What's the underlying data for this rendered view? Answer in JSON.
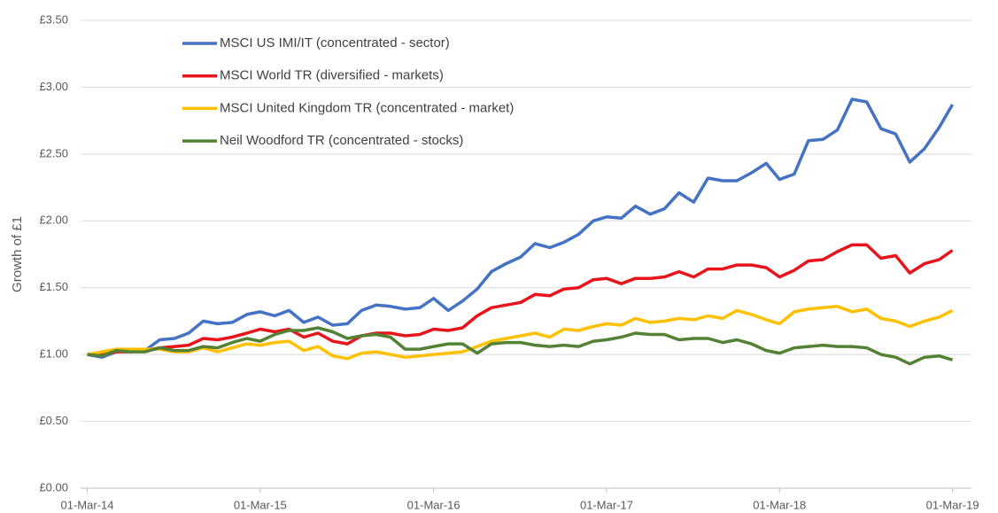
{
  "chart_data": {
    "type": "line",
    "y_label": "Growth of £1",
    "x": [
      "2014-03-01",
      "2014-04-01",
      "2014-05-01",
      "2014-06-01",
      "2014-07-01",
      "2014-08-01",
      "2014-09-01",
      "2014-10-01",
      "2014-11-01",
      "2014-12-01",
      "2015-01-01",
      "2015-02-01",
      "2015-03-01",
      "2015-04-01",
      "2015-05-01",
      "2015-06-01",
      "2015-07-01",
      "2015-08-01",
      "2015-09-01",
      "2015-10-01",
      "2015-11-01",
      "2015-12-01",
      "2016-01-01",
      "2016-02-01",
      "2016-03-01",
      "2016-04-01",
      "2016-05-01",
      "2016-06-01",
      "2016-07-01",
      "2016-08-01",
      "2016-09-01",
      "2016-10-01",
      "2016-11-01",
      "2016-12-01",
      "2017-01-01",
      "2017-02-01",
      "2017-03-01",
      "2017-04-01",
      "2017-05-01",
      "2017-06-01",
      "2017-07-01",
      "2017-08-01",
      "2017-09-01",
      "2017-10-01",
      "2017-11-01",
      "2017-12-01",
      "2018-01-01",
      "2018-02-01",
      "2018-03-01",
      "2018-04-01",
      "2018-05-01",
      "2018-06-01",
      "2018-07-01",
      "2018-08-01",
      "2018-09-01",
      "2018-10-01",
      "2018-11-01",
      "2018-12-01",
      "2019-01-01",
      "2019-02-01",
      "2019-03-01"
    ],
    "series": [
      {
        "name": "MSCI US IMI/IT (concentrated - sector)",
        "color": "#4472c4",
        "values": [
          1.0,
          0.98,
          1.02,
          1.03,
          1.03,
          1.11,
          1.12,
          1.16,
          1.25,
          1.23,
          1.24,
          1.3,
          1.32,
          1.29,
          1.33,
          1.24,
          1.28,
          1.22,
          1.23,
          1.33,
          1.37,
          1.36,
          1.34,
          1.35,
          1.42,
          1.33,
          1.4,
          1.49,
          1.62,
          1.68,
          1.73,
          1.83,
          1.8,
          1.84,
          1.9,
          2.0,
          2.03,
          2.02,
          2.11,
          2.05,
          2.09,
          2.21,
          2.14,
          2.32,
          2.3,
          2.3,
          2.36,
          2.43,
          2.31,
          2.35,
          2.6,
          2.61,
          2.68,
          2.91,
          2.89,
          2.69,
          2.65,
          2.44,
          2.54,
          2.7,
          2.87
        ]
      },
      {
        "name": "MSCI World TR (diversified - markets)",
        "color": "#e8141b",
        "values": [
          1.0,
          1.0,
          1.02,
          1.02,
          1.03,
          1.05,
          1.06,
          1.07,
          1.12,
          1.11,
          1.13,
          1.16,
          1.19,
          1.17,
          1.19,
          1.13,
          1.16,
          1.1,
          1.08,
          1.14,
          1.16,
          1.16,
          1.14,
          1.15,
          1.19,
          1.18,
          1.2,
          1.29,
          1.35,
          1.37,
          1.39,
          1.45,
          1.44,
          1.49,
          1.5,
          1.56,
          1.57,
          1.53,
          1.57,
          1.57,
          1.58,
          1.62,
          1.58,
          1.64,
          1.64,
          1.67,
          1.67,
          1.65,
          1.58,
          1.63,
          1.7,
          1.71,
          1.77,
          1.82,
          1.82,
          1.72,
          1.74,
          1.61,
          1.68,
          1.71,
          1.78
        ]
      },
      {
        "name": "MSCI United Kingdom TR (concentrated - market)",
        "color": "#ffc000",
        "values": [
          1.0,
          1.02,
          1.04,
          1.04,
          1.04,
          1.04,
          1.02,
          1.02,
          1.05,
          1.02,
          1.05,
          1.08,
          1.07,
          1.09,
          1.1,
          1.03,
          1.06,
          0.99,
          0.97,
          1.01,
          1.02,
          1.0,
          0.98,
          0.99,
          1.0,
          1.01,
          1.02,
          1.06,
          1.1,
          1.12,
          1.14,
          1.16,
          1.13,
          1.19,
          1.18,
          1.21,
          1.23,
          1.22,
          1.27,
          1.24,
          1.25,
          1.27,
          1.26,
          1.29,
          1.27,
          1.33,
          1.3,
          1.26,
          1.23,
          1.32,
          1.34,
          1.35,
          1.36,
          1.32,
          1.34,
          1.27,
          1.25,
          1.21,
          1.25,
          1.28,
          1.33
        ]
      },
      {
        "name": "Neil Woodford TR (concentrated - stocks)",
        "color": "#548235",
        "values": [
          1.0,
          0.99,
          1.03,
          1.02,
          1.02,
          1.05,
          1.03,
          1.03,
          1.06,
          1.05,
          1.09,
          1.12,
          1.1,
          1.15,
          1.18,
          1.18,
          1.2,
          1.17,
          1.12,
          1.14,
          1.15,
          1.13,
          1.04,
          1.04,
          1.06,
          1.08,
          1.08,
          1.01,
          1.08,
          1.09,
          1.09,
          1.07,
          1.06,
          1.07,
          1.06,
          1.1,
          1.11,
          1.13,
          1.16,
          1.15,
          1.15,
          1.11,
          1.12,
          1.12,
          1.09,
          1.11,
          1.08,
          1.03,
          1.01,
          1.05,
          1.06,
          1.07,
          1.06,
          1.06,
          1.05,
          1.0,
          0.98,
          0.93,
          0.98,
          0.99,
          0.96
        ]
      }
    ],
    "xlim": [
      "2014-02-15",
      "2019-04-10"
    ],
    "xticks": [
      {
        "value": "2014-03-01",
        "label": "01-Mar-14"
      },
      {
        "value": "2015-03-01",
        "label": "01-Mar-15"
      },
      {
        "value": "2016-03-01",
        "label": "01-Mar-16"
      },
      {
        "value": "2017-03-01",
        "label": "01-Mar-17"
      },
      {
        "value": "2018-03-01",
        "label": "01-Mar-18"
      },
      {
        "value": "2019-03-01",
        "label": "01-Mar-19"
      }
    ],
    "ylim": [
      0,
      3.5
    ],
    "yticks": [
      {
        "value": 0,
        "label": "£0.00"
      },
      {
        "value": 0.5,
        "label": "£0.50"
      },
      {
        "value": 1,
        "label": "£1.00"
      },
      {
        "value": 1.5,
        "label": "£1.50"
      },
      {
        "value": 2,
        "label": "£2.00"
      },
      {
        "value": 2.5,
        "label": "£2.50"
      },
      {
        "value": 3,
        "label": "£3.00"
      },
      {
        "value": 3.5,
        "label": "£3.50"
      }
    ],
    "grid": true,
    "legend": "upper left"
  }
}
